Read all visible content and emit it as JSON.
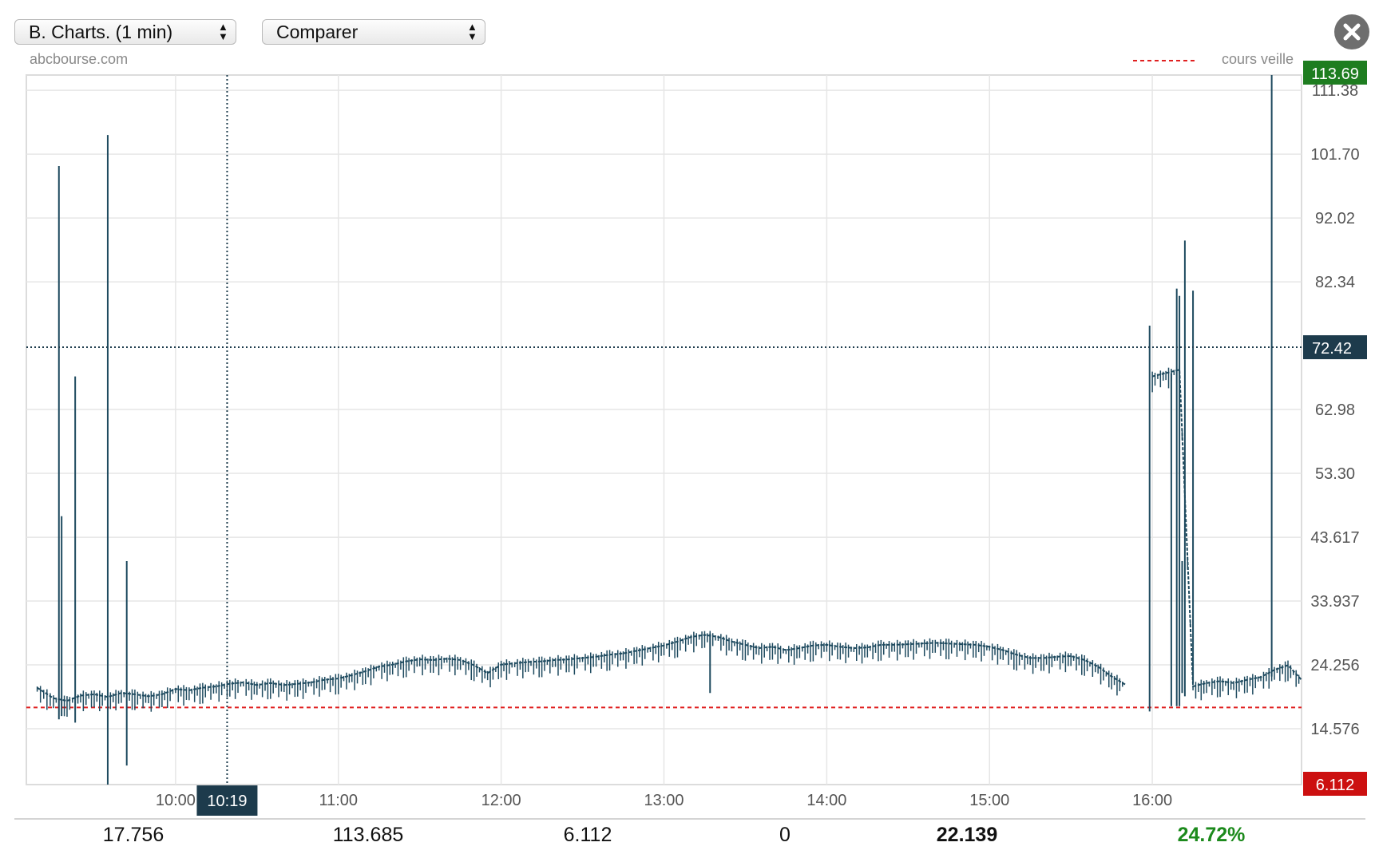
{
  "toolbar": {
    "chart_select": "B. Charts. (1 min)",
    "compare_select": "Comparer",
    "close_icon": "close-icon"
  },
  "source_label": "abcbourse.com",
  "legend": {
    "label": "cours veille",
    "color": "#e02020"
  },
  "colors": {
    "series": "#1e4a5f",
    "high_badge": "#1e7d20",
    "low_badge": "#cc1010",
    "crosshair_badge": "#1d3b4c"
  },
  "badges": {
    "high": "113.69",
    "low": "6.112",
    "crosshair_price": "72.42",
    "crosshair_time": "10:19"
  },
  "chart_data": {
    "type": "line",
    "xlabel": "",
    "ylabel": "",
    "x_ticks": [
      "10:00",
      "11:00",
      "12:00",
      "13:00",
      "14:00",
      "15:00",
      "16:00"
    ],
    "y_ticks": [
      "111.38",
      "101.70",
      "92.02",
      "82.34",
      "62.98",
      "53.30",
      "43.617",
      "33.937",
      "24.256",
      "14.576"
    ],
    "ylim": [
      6.112,
      113.69
    ],
    "xlim": [
      "09:05",
      "16:55"
    ],
    "previous_close": 17.8,
    "crosshair": {
      "time": "10:19",
      "price": 72.42
    },
    "grid": true,
    "series_points": [
      [
        "09:09",
        20.8
      ],
      [
        "09:15",
        19.2
      ],
      [
        "09:20",
        18.8
      ],
      [
        "09:25",
        19.6
      ],
      [
        "09:30",
        19.8
      ],
      [
        "09:35",
        19.4
      ],
      [
        "09:40",
        20.0
      ],
      [
        "09:45",
        19.8
      ],
      [
        "09:50",
        19.5
      ],
      [
        "09:55",
        19.8
      ],
      [
        "10:00",
        20.6
      ],
      [
        "10:05",
        20.4
      ],
      [
        "10:10",
        20.8
      ],
      [
        "10:15",
        21.0
      ],
      [
        "10:20",
        21.4
      ],
      [
        "10:25",
        21.6
      ],
      [
        "10:30",
        21.2
      ],
      [
        "10:35",
        21.5
      ],
      [
        "10:40",
        21.2
      ],
      [
        "10:45",
        21.4
      ],
      [
        "10:50",
        21.6
      ],
      [
        "10:55",
        22.0
      ],
      [
        "11:00",
        22.2
      ],
      [
        "11:05",
        22.7
      ],
      [
        "11:10",
        23.3
      ],
      [
        "11:15",
        24.0
      ],
      [
        "11:20",
        24.3
      ],
      [
        "11:25",
        24.8
      ],
      [
        "11:30",
        25.1
      ],
      [
        "11:35",
        25.0
      ],
      [
        "11:40",
        25.2
      ],
      [
        "11:45",
        25.0
      ],
      [
        "11:50",
        24.2
      ],
      [
        "11:55",
        23.0
      ],
      [
        "12:00",
        24.3
      ],
      [
        "12:05",
        24.5
      ],
      [
        "12:10",
        24.7
      ],
      [
        "12:15",
        24.8
      ],
      [
        "12:20",
        25.0
      ],
      [
        "12:25",
        25.1
      ],
      [
        "12:30",
        25.3
      ],
      [
        "12:35",
        25.5
      ],
      [
        "12:40",
        25.8
      ],
      [
        "12:45",
        26.0
      ],
      [
        "12:50",
        26.4
      ],
      [
        "12:55",
        26.8
      ],
      [
        "13:00",
        27.2
      ],
      [
        "13:05",
        27.8
      ],
      [
        "13:10",
        28.5
      ],
      [
        "13:15",
        28.8
      ],
      [
        "13:20",
        28.5
      ],
      [
        "13:25",
        27.8
      ],
      [
        "13:30",
        27.3
      ],
      [
        "13:35",
        26.8
      ],
      [
        "13:40",
        27.0
      ],
      [
        "13:45",
        26.5
      ],
      [
        "13:50",
        26.8
      ],
      [
        "13:55",
        27.2
      ],
      [
        "14:00",
        27.3
      ],
      [
        "14:05",
        27.0
      ],
      [
        "14:10",
        26.8
      ],
      [
        "14:15",
        26.9
      ],
      [
        "14:20",
        27.3
      ],
      [
        "14:25",
        27.3
      ],
      [
        "14:30",
        27.4
      ],
      [
        "14:35",
        27.5
      ],
      [
        "14:40",
        27.6
      ],
      [
        "14:45",
        27.5
      ],
      [
        "14:50",
        27.4
      ],
      [
        "14:55",
        27.3
      ],
      [
        "15:00",
        27.0
      ],
      [
        "15:05",
        26.5
      ],
      [
        "15:10",
        25.8
      ],
      [
        "15:15",
        25.3
      ],
      [
        "15:20",
        25.3
      ],
      [
        "15:25",
        25.5
      ],
      [
        "15:30",
        25.6
      ],
      [
        "15:35",
        25.0
      ],
      [
        "15:40",
        24.0
      ],
      [
        "15:45",
        22.5
      ],
      [
        "15:50",
        21.3
      ],
      [
        "15:55",
        null
      ],
      [
        "16:00",
        68.0
      ],
      [
        "16:05",
        68.5
      ],
      [
        "16:10",
        69.0
      ],
      [
        "16:15",
        21.0
      ],
      [
        "16:20",
        21.5
      ],
      [
        "16:25",
        21.8
      ],
      [
        "16:30",
        21.5
      ],
      [
        "16:35",
        22.0
      ],
      [
        "16:40",
        22.4
      ],
      [
        "16:45",
        23.5
      ],
      [
        "16:50",
        24.2
      ],
      [
        "16:55",
        22.0
      ]
    ],
    "spikes": [
      {
        "time": "09:17",
        "high": 99.9,
        "low": 16.0
      },
      {
        "time": "09:18",
        "high": 46.8,
        "low": 16.5
      },
      {
        "time": "09:23",
        "high": 68.0,
        "low": 15.5
      },
      {
        "time": "09:35",
        "high": 104.6,
        "low": 6.112
      },
      {
        "time": "09:42",
        "high": 40.0,
        "low": 9.0
      },
      {
        "time": "13:17",
        "high": 29.0,
        "low": 20.0
      },
      {
        "time": "15:59",
        "high": 75.7,
        "low": 17.2
      },
      {
        "time": "16:07",
        "high": 68.5,
        "low": 18.0
      },
      {
        "time": "16:09",
        "high": 81.3,
        "low": 18.0
      },
      {
        "time": "16:10",
        "high": 80.2,
        "low": 18.0
      },
      {
        "time": "16:11",
        "high": 40.0,
        "low": 20.0
      },
      {
        "time": "16:12",
        "high": 88.6,
        "low": 19.5
      },
      {
        "time": "16:15",
        "high": 81.0,
        "low": 21.5
      },
      {
        "time": "16:44",
        "high": 113.69,
        "low": 22.5
      }
    ]
  },
  "stats": {
    "open": "17.756",
    "high": "113.685",
    "low": "6.112",
    "volume": "0",
    "last": "22.139",
    "change": "24.72%"
  }
}
